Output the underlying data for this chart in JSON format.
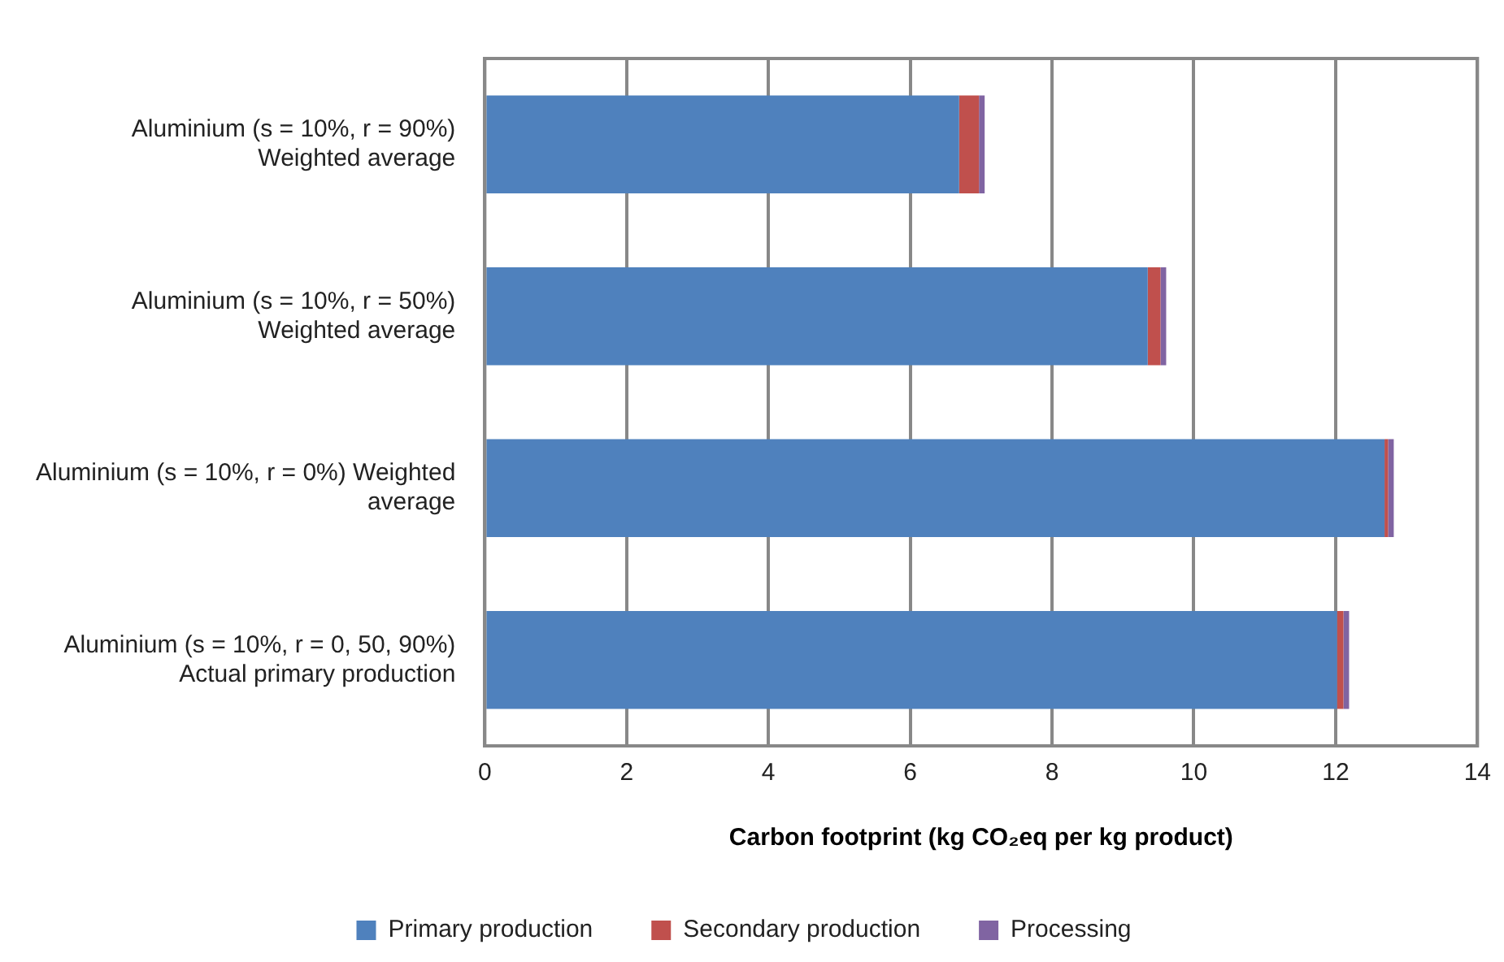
{
  "chart_data": {
    "type": "bar",
    "orientation": "horizontal",
    "stacked": true,
    "categories": [
      "Aluminium (s = 10%, r = 90%)\nWeighted average",
      "Aluminium (s = 10%, r = 50%)\nWeighted average",
      "Aluminium (s = 10%, r = 0%) Weighted\naverage",
      "Aluminium (s = 10%, r = 0, 50, 90%)\nActual primary production"
    ],
    "series": [
      {
        "name": "Primary production",
        "color": "#4f81bd",
        "values": [
          6.69,
          9.35,
          12.69,
          12.02
        ]
      },
      {
        "name": "Secondary production",
        "color": "#c0504d",
        "values": [
          0.28,
          0.18,
          0.05,
          0.09
        ]
      },
      {
        "name": "Processing",
        "color": "#8064a2",
        "values": [
          0.08,
          0.08,
          0.08,
          0.08
        ]
      }
    ],
    "xlim": [
      0,
      14
    ],
    "xticks": [
      0,
      2,
      4,
      6,
      8,
      10,
      12,
      14
    ],
    "xlabel": "Carbon footprint (kg CO₂eq per kg product)",
    "grid": "x",
    "legend": "bottom"
  }
}
